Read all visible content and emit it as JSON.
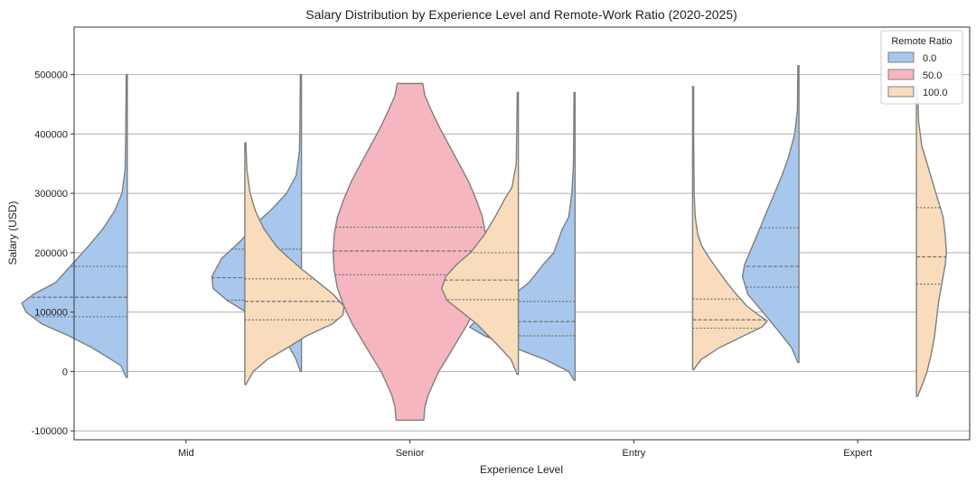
{
  "chart_data": {
    "type": "violin",
    "title": "Salary Distribution by Experience Level and Remote-Work Ratio (2020-2025)",
    "xlabel": "Experience Level",
    "ylabel": "Salary (USD)",
    "ylim": [
      -115000,
      580000
    ],
    "yticks": [
      -100000,
      0,
      100000,
      200000,
      300000,
      400000,
      500000
    ],
    "grid": "horizontal",
    "categories": [
      "Mid",
      "Senior",
      "Entry",
      "Expert"
    ],
    "legend": {
      "title": "Remote Ratio",
      "location": "top-right",
      "entries": [
        {
          "label": "0.0",
          "color": "#a7c7ed"
        },
        {
          "label": "50.0",
          "color": "#f6b6c0"
        },
        {
          "label": "100.0",
          "color": "#f8dcbc"
        }
      ]
    },
    "series": [
      {
        "name": "0.0",
        "color": "#a7c7ed",
        "violins": [
          {
            "category": "Mid",
            "min": -10000,
            "max": 500000,
            "q1": 92000,
            "median": 125000,
            "q3": 177000,
            "profile": [
              [
                -10000,
                0.01
              ],
              [
                10000,
                0.06
              ],
              [
                40000,
                0.33
              ],
              [
                60000,
                0.55
              ],
              [
                80000,
                0.8
              ],
              [
                100000,
                0.95
              ],
              [
                115000,
                0.99
              ],
              [
                130000,
                0.88
              ],
              [
                150000,
                0.67
              ],
              [
                180000,
                0.52
              ],
              [
                210000,
                0.37
              ],
              [
                240000,
                0.23
              ],
              [
                270000,
                0.12
              ],
              [
                300000,
                0.05
              ],
              [
                340000,
                0.02
              ],
              [
                400000,
                0.015
              ],
              [
                500000,
                0.01
              ]
            ]
          },
          {
            "category": "Senior",
            "min": 0,
            "max": 500000,
            "q1": 120000,
            "median": 158000,
            "q3": 206000,
            "profile": [
              [
                0,
                0.01
              ],
              [
                20000,
                0.05
              ],
              [
                40000,
                0.11
              ],
              [
                60000,
                0.22
              ],
              [
                80000,
                0.38
              ],
              [
                100000,
                0.52
              ],
              [
                120000,
                0.7
              ],
              [
                140000,
                0.83
              ],
              [
                160000,
                0.84
              ],
              [
                190000,
                0.75
              ],
              [
                220000,
                0.57
              ],
              [
                250000,
                0.42
              ],
              [
                275000,
                0.27
              ],
              [
                300000,
                0.14
              ],
              [
                330000,
                0.05
              ],
              [
                370000,
                0.02
              ],
              [
                420000,
                0.015
              ],
              [
                500000,
                0.01
              ]
            ]
          },
          {
            "category": "Entry",
            "min": -15000,
            "max": 470000,
            "q1": 60000,
            "median": 84000,
            "q3": 118000,
            "profile": [
              [
                -15000,
                0.01
              ],
              [
                0,
                0.06
              ],
              [
                20000,
                0.28
              ],
              [
                40000,
                0.57
              ],
              [
                60000,
                0.85
              ],
              [
                75000,
                0.99
              ],
              [
                90000,
                0.9
              ],
              [
                110000,
                0.72
              ],
              [
                130000,
                0.57
              ],
              [
                150000,
                0.43
              ],
              [
                180000,
                0.3
              ],
              [
                200000,
                0.2
              ],
              [
                240000,
                0.12
              ],
              [
                260000,
                0.06
              ],
              [
                300000,
                0.03
              ],
              [
                350000,
                0.015
              ],
              [
                470000,
                0.01
              ]
            ]
          },
          {
            "category": "Expert",
            "min": 15000,
            "max": 515000,
            "q1": 142000,
            "median": 177000,
            "q3": 242000,
            "profile": [
              [
                15000,
                0.01
              ],
              [
                40000,
                0.07
              ],
              [
                70000,
                0.2
              ],
              [
                100000,
                0.34
              ],
              [
                130000,
                0.48
              ],
              [
                160000,
                0.53
              ],
              [
                180000,
                0.51
              ],
              [
                210000,
                0.44
              ],
              [
                240000,
                0.37
              ],
              [
                270000,
                0.3
              ],
              [
                300000,
                0.23
              ],
              [
                330000,
                0.16
              ],
              [
                360000,
                0.1
              ],
              [
                400000,
                0.04
              ],
              [
                440000,
                0.015
              ],
              [
                515000,
                0.01
              ]
            ]
          }
        ]
      },
      {
        "name": "50.0",
        "color": "#f6b6c0",
        "violins": [
          {
            "category": "Senior",
            "min": -82000,
            "max": 485000,
            "q1": 163000,
            "median": 203000,
            "q3": 243000,
            "profile": [
              [
                -82000,
                0.13
              ],
              [
                -60000,
                0.14
              ],
              [
                -40000,
                0.17
              ],
              [
                -20000,
                0.22
              ],
              [
                0,
                0.27
              ],
              [
                20000,
                0.34
              ],
              [
                50000,
                0.44
              ],
              [
                80000,
                0.54
              ],
              [
                110000,
                0.62
              ],
              [
                140000,
                0.68
              ],
              [
                170000,
                0.71
              ],
              [
                200000,
                0.72
              ],
              [
                230000,
                0.71
              ],
              [
                260000,
                0.68
              ],
              [
                290000,
                0.62
              ],
              [
                320000,
                0.55
              ],
              [
                350000,
                0.46
              ],
              [
                380000,
                0.37
              ],
              [
                410000,
                0.28
              ],
              [
                440000,
                0.2
              ],
              [
                465000,
                0.14
              ],
              [
                485000,
                0.12
              ]
            ]
          }
        ]
      },
      {
        "name": "100.0",
        "color": "#f8dcbc",
        "violins": [
          {
            "category": "Mid",
            "min": -22000,
            "max": 385000,
            "q1": 87000,
            "median": 118000,
            "q3": 156000,
            "profile": [
              [
                -22000,
                0.01
              ],
              [
                0,
                0.08
              ],
              [
                20000,
                0.21
              ],
              [
                40000,
                0.4
              ],
              [
                60000,
                0.58
              ],
              [
                80000,
                0.82
              ],
              [
                95000,
                0.92
              ],
              [
                110000,
                0.93
              ],
              [
                130000,
                0.83
              ],
              [
                150000,
                0.69
              ],
              [
                170000,
                0.55
              ],
              [
                190000,
                0.42
              ],
              [
                210000,
                0.3
              ],
              [
                240000,
                0.18
              ],
              [
                270000,
                0.1
              ],
              [
                300000,
                0.05
              ],
              [
                340000,
                0.02
              ],
              [
                385000,
                0.01
              ]
            ]
          },
          {
            "category": "Senior",
            "min": -5000,
            "max": 470000,
            "q1": 121000,
            "median": 154000,
            "q3": 200000,
            "profile": [
              [
                -5000,
                0.01
              ],
              [
                20000,
                0.07
              ],
              [
                40000,
                0.17
              ],
              [
                60000,
                0.28
              ],
              [
                80000,
                0.39
              ],
              [
                100000,
                0.53
              ],
              [
                120000,
                0.67
              ],
              [
                140000,
                0.72
              ],
              [
                160000,
                0.68
              ],
              [
                180000,
                0.58
              ],
              [
                200000,
                0.45
              ],
              [
                230000,
                0.32
              ],
              [
                260000,
                0.22
              ],
              [
                290000,
                0.13
              ],
              [
                310000,
                0.06
              ],
              [
                350000,
                0.02
              ],
              [
                470000,
                0.01
              ]
            ]
          },
          {
            "category": "Entry",
            "min": 3000,
            "max": 480000,
            "q1": 73000,
            "median": 87000,
            "q3": 122000,
            "profile": [
              [
                3000,
                0.01
              ],
              [
                20000,
                0.08
              ],
              [
                40000,
                0.25
              ],
              [
                60000,
                0.48
              ],
              [
                75000,
                0.65
              ],
              [
                85000,
                0.7
              ],
              [
                95000,
                0.62
              ],
              [
                110000,
                0.51
              ],
              [
                130000,
                0.41
              ],
              [
                150000,
                0.32
              ],
              [
                170000,
                0.24
              ],
              [
                190000,
                0.16
              ],
              [
                210000,
                0.09
              ],
              [
                230000,
                0.05
              ],
              [
                260000,
                0.025
              ],
              [
                300000,
                0.015
              ],
              [
                400000,
                0.01
              ],
              [
                480000,
                0.01
              ]
            ]
          },
          {
            "category": "Expert",
            "min": -42000,
            "max": 480000,
            "q1": 147000,
            "median": 193000,
            "q3": 276000,
            "profile": [
              [
                -42000,
                0.01
              ],
              [
                -20000,
                0.06
              ],
              [
                0,
                0.1
              ],
              [
                30000,
                0.14
              ],
              [
                60000,
                0.17
              ],
              [
                90000,
                0.19
              ],
              [
                120000,
                0.21
              ],
              [
                150000,
                0.24
              ],
              [
                180000,
                0.27
              ],
              [
                200000,
                0.28
              ],
              [
                230000,
                0.27
              ],
              [
                260000,
                0.25
              ],
              [
                290000,
                0.2
              ],
              [
                320000,
                0.15
              ],
              [
                350000,
                0.1
              ],
              [
                380000,
                0.05
              ],
              [
                420000,
                0.02
              ],
              [
                480000,
                0.01
              ]
            ]
          }
        ]
      }
    ]
  }
}
